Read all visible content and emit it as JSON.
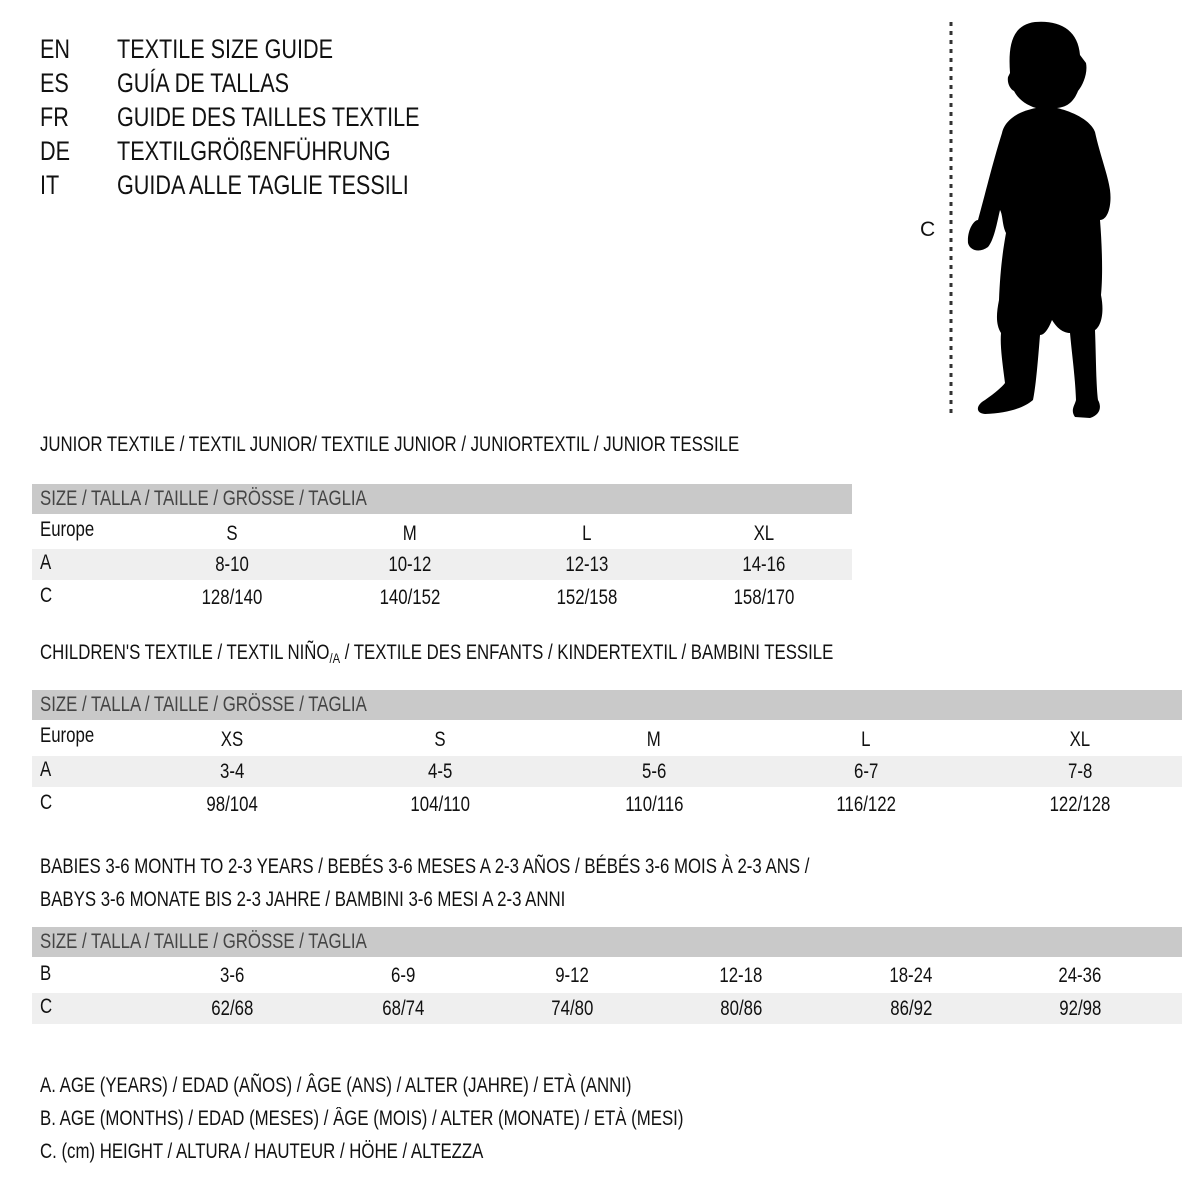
{
  "titles": [
    {
      "code": "EN",
      "text": "TEXTILE SIZE GUIDE"
    },
    {
      "code": "ES",
      "text": "GUÍA DE TALLAS"
    },
    {
      "code": "FR",
      "text": "GUIDE DES TAILLES TEXTILE"
    },
    {
      "code": "DE",
      "text": "TEXTILGRÖßENFÜHRUNG"
    },
    {
      "code": "IT",
      "text": "GUIDA ALLE TAGLIE TESSILI"
    }
  ],
  "figure": {
    "label": "C",
    "icon": "child-silhouette"
  },
  "size_header": "SIZE / TALLA / TAILLE / GRÖSSE / TAGLIA",
  "junior": {
    "heading": "JUNIOR TEXTILE / TEXTIL JUNIOR/ TEXTILE JUNIOR / JUNIORTEXTIL / JUNIOR TESSILE",
    "rows": [
      {
        "label": "Europe",
        "values": [
          "S",
          "M",
          "L",
          "XL"
        ]
      },
      {
        "label": "A",
        "values": [
          "8-10",
          "10-12",
          "12-13",
          "14-16"
        ]
      },
      {
        "label": "C",
        "values": [
          "128/140",
          "140/152",
          "152/158",
          "158/170"
        ]
      }
    ]
  },
  "children": {
    "heading_pre": "CHILDREN'S TEXTILE / TEXTIL NIÑO",
    "heading_sub": "/A",
    "heading_post": " / TEXTILE DES ENFANTS / KINDERTEXTIL / BAMBINI TESSILE",
    "rows": [
      {
        "label": "Europe",
        "values": [
          "XS",
          "S",
          "M",
          "L",
          "XL"
        ]
      },
      {
        "label": "A",
        "values": [
          "3-4",
          "4-5",
          "5-6",
          "6-7",
          "7-8"
        ]
      },
      {
        "label": "C",
        "values": [
          "98/104",
          "104/110",
          "110/116",
          "116/122",
          "122/128"
        ]
      }
    ]
  },
  "babies": {
    "heading_line1": "BABIES 3-6 MONTH TO 2-3 YEARS / BEBÉS 3-6 MESES A 2-3 AÑOS / BÉBÉS 3-6 MOIS À 2-3 ANS /",
    "heading_line2": "BABYS 3-6 MONATE BIS 2-3 JAHRE / BAMBINI 3-6 MESI A 2-3 ANNI",
    "rows": [
      {
        "label": "B",
        "values": [
          "3-6",
          "6-9",
          "9-12",
          "12-18",
          "18-24",
          "24-36"
        ]
      },
      {
        "label": "C",
        "values": [
          "62/68",
          "68/74",
          "74/80",
          "80/86",
          "86/92",
          "92/98"
        ]
      }
    ]
  },
  "legend": [
    "A. AGE (YEARS) / EDAD (AÑOS) / ÂGE (ANS) / ALTER (JAHRE) / ETÀ (ANNI)",
    "B. AGE (MONTHS) / EDAD (MESES) / ÂGE (MOIS) / ALTER (MONATE) / ETÀ (MESI)",
    "C. (cm) HEIGHT / ALTURA / HAUTEUR / HÖHE / ALTEZZA"
  ],
  "colors": {
    "header_bar": "#c9c9c9",
    "shaded_row": "#efefef",
    "text": "#111111"
  }
}
